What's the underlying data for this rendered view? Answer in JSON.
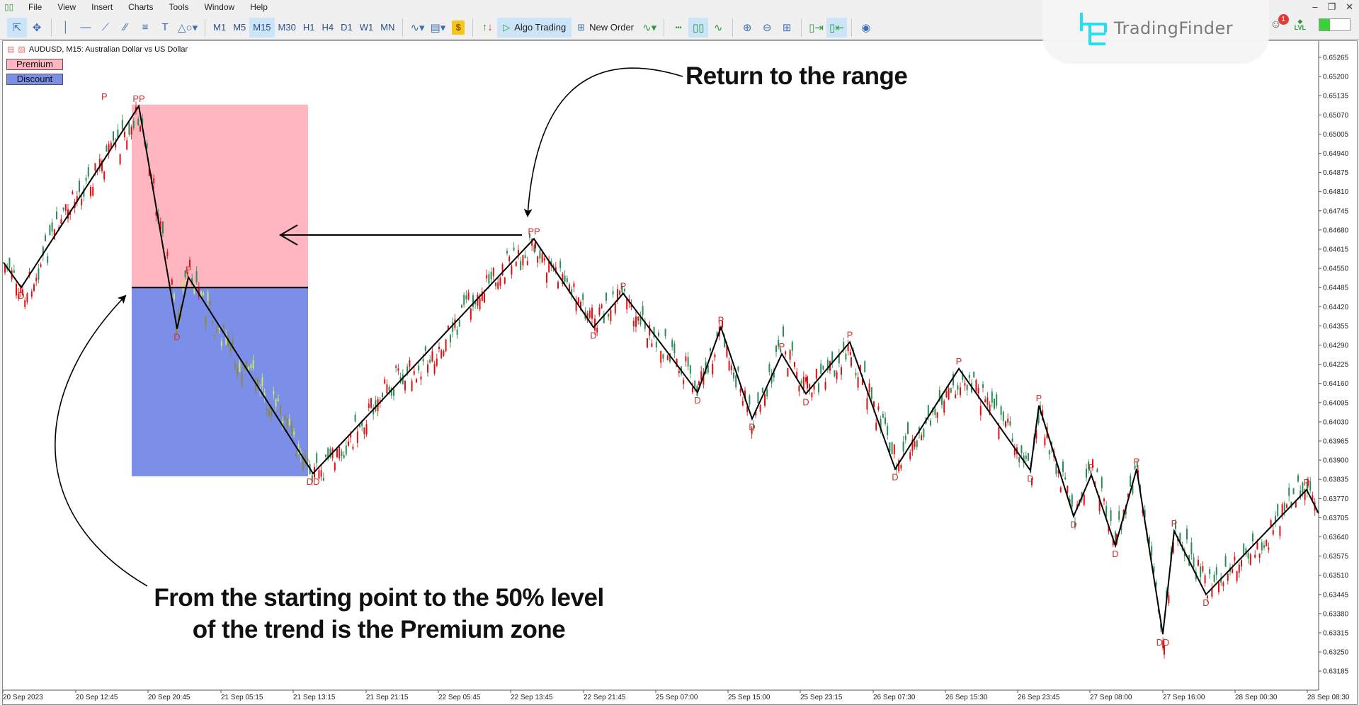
{
  "menubar": {
    "items": [
      "File",
      "View",
      "Insert",
      "Charts",
      "Tools",
      "Window",
      "Help"
    ]
  },
  "toolbar": {
    "timeframes": [
      "M1",
      "M5",
      "M15",
      "M30",
      "H1",
      "H4",
      "D1",
      "W1",
      "MN"
    ],
    "active_timeframe": "M15",
    "algo_trading_label": "Algo Trading",
    "new_order_label": "New Order",
    "notification_count": "1",
    "lvl_label": "LVL"
  },
  "watermark": {
    "brand": "TradingFinder"
  },
  "chart": {
    "title": "AUDUSD, M15:  Australian Dollar vs US Dollar",
    "legend": {
      "premium": "Premium",
      "discount": "Discount"
    },
    "colors": {
      "premium_zone": "#ffb6c1",
      "discount_zone": "#7b8fe8",
      "bull": "#2e8b57",
      "bear": "#e01010",
      "pivot_label": "#d03030",
      "zigzag": "#000000"
    }
  },
  "annotations": {
    "return_to_range": "Return to the range",
    "premium_line1": "From the starting point to the 50% level",
    "premium_line2": "of the trend is the Premium zone"
  },
  "chart_data": {
    "type": "candlestick",
    "symbol": "AUDUSD",
    "timeframe": "M15",
    "title": "AUDUSD, M15: Australian Dollar vs US Dollar",
    "y_ticks": [
      "0.65265",
      "0.65200",
      "0.65135",
      "0.65070",
      "0.65005",
      "0.64940",
      "0.64875",
      "0.64810",
      "0.64745",
      "0.64680",
      "0.64615",
      "0.64550",
      "0.64485",
      "0.64420",
      "0.64355",
      "0.64290",
      "0.64225",
      "0.64160",
      "0.64095",
      "0.64030",
      "0.63965",
      "0.63900",
      "0.63835",
      "0.63770",
      "0.63705",
      "0.63640",
      "0.63575",
      "0.63510",
      "0.63445",
      "0.63380",
      "0.63315",
      "0.63250",
      "0.63185"
    ],
    "x_ticks": [
      "20 Sep 2023",
      "20 Sep 12:45",
      "20 Sep 20:45",
      "21 Sep 05:15",
      "21 Sep 13:15",
      "21 Sep 21:15",
      "22 Sep 05:45",
      "22 Sep 13:45",
      "22 Sep 21:45",
      "25 Sep 07:00",
      "25 Sep 15:00",
      "25 Sep 23:15",
      "26 Sep 07:30",
      "26 Sep 15:30",
      "26 Sep 23:45",
      "27 Sep 08:00",
      "27 Sep 16:00",
      "28 Sep 00:30",
      "28 Sep 08:30"
    ],
    "ylim": [
      0.6315,
      0.653
    ],
    "zigzag_pivots": [
      {
        "label": "",
        "time": "20 Sep 2023",
        "price": 0.6457
      },
      {
        "label": "D",
        "time": "20 Sep 01:30",
        "price": 0.64485
      },
      {
        "label": "PP",
        "time": "20 Sep 18:45",
        "price": 0.651
      },
      {
        "label": "D",
        "time": "21 Sep 00:30",
        "price": 0.64345
      },
      {
        "label": "P",
        "time": "21 Sep 02:15",
        "price": 0.6452
      },
      {
        "label": "DD",
        "time": "21 Sep 13:00",
        "price": 0.63855
      },
      {
        "label": "PP",
        "time": "22 Sep 14:15",
        "price": 0.6465
      },
      {
        "label": "D",
        "time": "22 Sep 22:45",
        "price": 0.6435
      },
      {
        "label": "P",
        "time": "25 Sep 01:00",
        "price": 0.64465
      },
      {
        "label": "D",
        "time": "25 Sep 09:15",
        "price": 0.6413
      },
      {
        "label": "P",
        "time": "25 Sep 12:45",
        "price": 0.6435
      },
      {
        "label": "D",
        "time": "25 Sep 16:00",
        "price": 0.6404
      },
      {
        "label": "P",
        "time": "25 Sep 19:45",
        "price": 0.6426
      },
      {
        "label": "D",
        "time": "25 Sep 23:00",
        "price": 0.64125
      },
      {
        "label": "P",
        "time": "26 Sep 04:45",
        "price": 0.643
      },
      {
        "label": "D",
        "time": "26 Sep 07:45",
        "price": 0.6387
      },
      {
        "label": "P",
        "time": "26 Sep 16:30",
        "price": 0.6421
      },
      {
        "label": "D",
        "time": "26 Sep 23:45",
        "price": 0.63865
      },
      {
        "label": "P",
        "time": "27 Sep 01:00",
        "price": 0.64085
      },
      {
        "label": "D",
        "time": "27 Sep 08:00",
        "price": 0.6371
      },
      {
        "label": "P",
        "time": "27 Sep 10:15",
        "price": 0.6385
      },
      {
        "label": "D",
        "time": "27 Sep 13:00",
        "price": 0.6361
      },
      {
        "label": "P",
        "time": "27 Sep 15:45",
        "price": 0.6387
      },
      {
        "label": "DD",
        "time": "27 Sep 19:30",
        "price": 0.6331
      },
      {
        "label": "P",
        "time": "27 Sep 20:45",
        "price": 0.6366
      },
      {
        "label": "D",
        "time": "28 Sep 00:15",
        "price": 0.63445
      },
      {
        "label": "P",
        "time": "28 Sep 07:30",
        "price": 0.638
      },
      {
        "label": "",
        "time": "28 Sep 08:45",
        "price": 0.6372
      }
    ],
    "zones": {
      "premium": {
        "from_price": 0.651,
        "to_price": 0.64485
      },
      "discount": {
        "from_price": 0.64485,
        "to_price": 0.63855
      },
      "midline_price": 0.64485
    }
  }
}
